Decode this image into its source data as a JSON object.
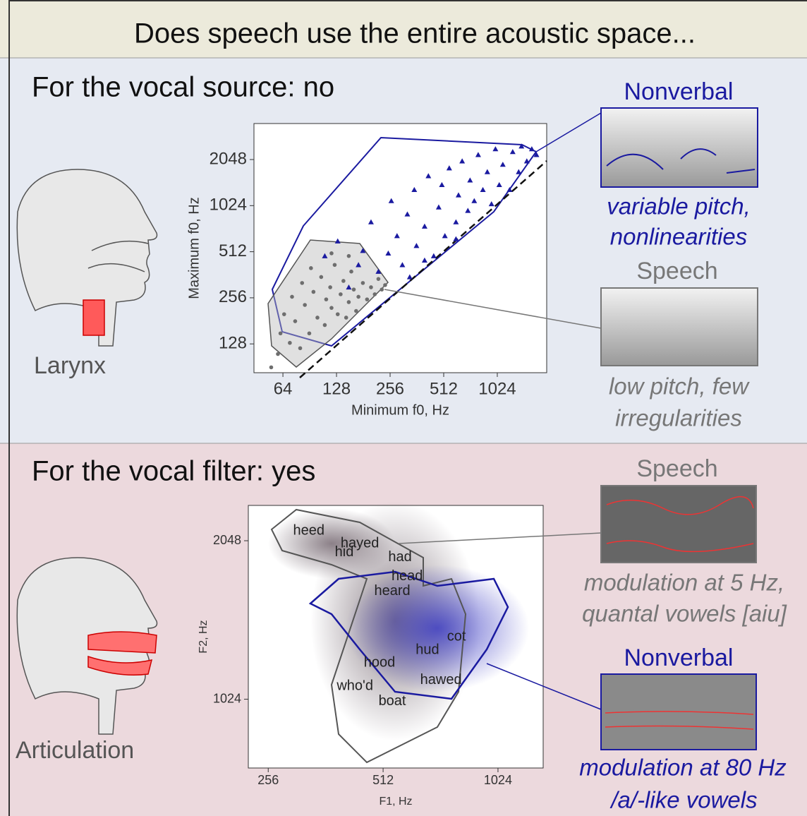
{
  "header": {
    "title": "Does speech use the entire acoustic space..."
  },
  "source_panel": {
    "heading": "For the vocal source: no",
    "organ_label": "Larynx",
    "nonverbal_caption": [
      "variable pitch,",
      "nonlinearities"
    ],
    "speech_caption": [
      "low pitch, few",
      "irregularities"
    ]
  },
  "filter_panel": {
    "heading": "For the vocal filter: yes",
    "organ_label": "Articulation",
    "speech_caption": [
      "modulation at 5 Hz,",
      "quantal vowels [aiu]"
    ],
    "nonverbal_caption": [
      "modulation at 80 Hz",
      "/a/-like vowels"
    ]
  },
  "chart_data": [
    {
      "type": "scatter",
      "xlabel": "Minimum f0, Hz",
      "ylabel": "Maximum f0, Hz",
      "xscale": "log",
      "yscale": "log",
      "xlim": [
        44,
        1940
      ],
      "ylim": [
        83,
        3520
      ],
      "xticks": [
        64,
        128,
        256,
        512,
        1024
      ],
      "yticks": [
        128,
        256,
        512,
        1024,
        2048
      ],
      "grid": false,
      "series": [
        {
          "name": "Speech",
          "color": "#6e6e6e",
          "marker": "circle",
          "x": [
            55,
            60,
            62,
            65,
            70,
            72,
            75,
            80,
            82,
            85,
            90,
            92,
            95,
            100,
            105,
            110,
            112,
            118,
            120,
            125,
            130,
            135,
            140,
            145,
            150,
            155,
            160,
            165,
            170,
            180,
            190,
            200,
            210,
            220,
            230,
            240,
            120,
            150
          ],
          "values": [
            90,
            110,
            150,
            200,
            130,
            260,
            180,
            120,
            320,
            230,
            150,
            400,
            280,
            190,
            350,
            170,
            250,
            300,
            220,
            420,
            200,
            270,
            330,
            190,
            240,
            380,
            290,
            210,
            260,
            320,
            250,
            300,
            270,
            340,
            290,
            310,
            500,
            480
          ]
        },
        {
          "name": "Nonverbal",
          "color": "#1a1aa0",
          "marker": "triangle",
          "x": [
            110,
            130,
            150,
            170,
            200,
            220,
            250,
            260,
            280,
            300,
            320,
            350,
            360,
            400,
            420,
            450,
            480,
            500,
            520,
            550,
            600,
            620,
            650,
            700,
            720,
            760,
            800,
            850,
            900,
            950,
            1000,
            1050,
            1100,
            1200,
            1250,
            1350,
            1400,
            1500,
            1600,
            1700,
            330,
            400,
            180,
            600
          ],
          "values": [
            480,
            600,
            300,
            420,
            800,
            380,
            500,
            1100,
            650,
            420,
            900,
            1300,
            560,
            750,
            1600,
            480,
            1000,
            1400,
            650,
            1800,
            800,
            1200,
            2000,
            950,
            1500,
            1100,
            2200,
            1300,
            1700,
            1050,
            2400,
            1400,
            1900,
            1300,
            2300,
            1700,
            2500,
            2000,
            2400,
            2200,
            350,
            450,
            520,
            620
          ]
        }
      ]
    },
    {
      "type": "scatter",
      "xlabel": "F1, Hz",
      "ylabel": "F2, Hz",
      "xscale": "log",
      "yscale": "log",
      "xlim": [
        227,
        1345
      ],
      "ylim": [
        758,
        2390
      ],
      "xticks": [
        256,
        512,
        1024
      ],
      "yticks": [
        1024,
        2048
      ],
      "grid": false,
      "series": [
        {
          "color": "#222222",
          "labels": [
            "heed",
            "hayed",
            "hid",
            "had",
            "head",
            "heard",
            "cot",
            "hud",
            "hood",
            "hawed",
            "who'd",
            "boat"
          ],
          "x": [
            327,
            445,
            405,
            567,
            592,
            541,
            797,
            669,
            501,
            726,
            432,
            541
          ],
          "values": [
            2138,
            2023,
            1944,
            1903,
            1750,
            1642,
            1346,
            1268,
            1200,
            1112,
            1084,
            1014
          ]
        }
      ]
    }
  ]
}
